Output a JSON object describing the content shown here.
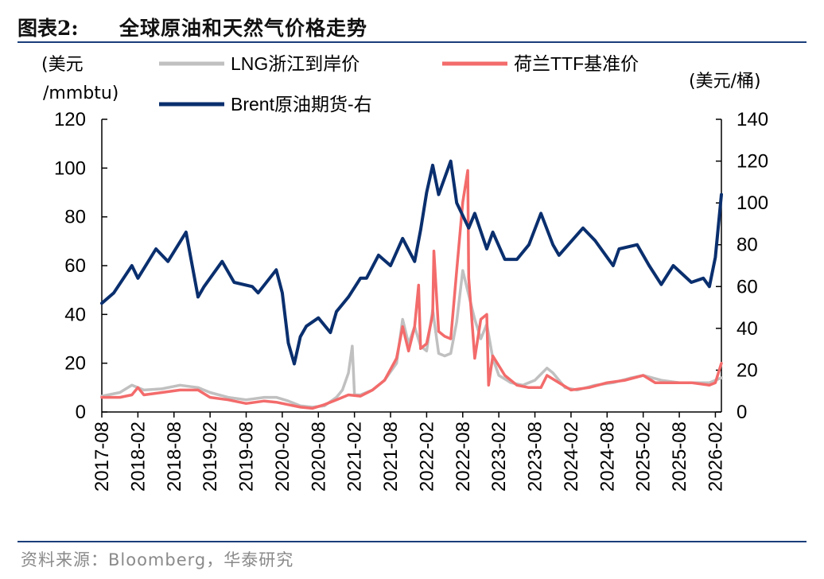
{
  "header": {
    "figure_label": "图表2:",
    "title": "全球原油和天然气价格走势"
  },
  "footer": {
    "source": "资料来源：Bloomberg，华泰研究"
  },
  "chart_data": {
    "type": "line",
    "title": "全球原油和天然气价格走势",
    "left_axis": {
      "unit_line1": "(美元",
      "unit_line2": "/mmbtu)",
      "ylim": [
        0,
        120
      ],
      "ticks": [
        0,
        20,
        40,
        60,
        80,
        100,
        120
      ]
    },
    "right_axis": {
      "unit": "(美元/桶)",
      "ylim": [
        0,
        140
      ],
      "ticks": [
        0,
        20,
        40,
        60,
        80,
        100,
        120,
        140
      ]
    },
    "x_range": [
      "2017-08",
      "2026-03"
    ],
    "x_ticks": [
      "2017-08",
      "2018-02",
      "2018-08",
      "2019-02",
      "2019-08",
      "2020-02",
      "2020-08",
      "2021-02",
      "2021-08",
      "2022-02",
      "2022-08",
      "2023-02",
      "2023-08",
      "2024-02",
      "2024-08",
      "2025-02",
      "2025-08",
      "2026-02"
    ],
    "series": [
      {
        "name": "LNG浙江到岸价",
        "axis": "left",
        "color": "#c0c0c0",
        "x": [
          "2017-08",
          "2017-11",
          "2018-01",
          "2018-03",
          "2018-06",
          "2018-09",
          "2018-12",
          "2019-02",
          "2019-05",
          "2019-08",
          "2019-11",
          "2020-01",
          "2020-03",
          "2020-05",
          "2020-07",
          "2020-09",
          "2020-11",
          "2020-12",
          "2021-01",
          "2021-01-20",
          "2021-02",
          "2021-03",
          "2021-05",
          "2021-07",
          "2021-09",
          "2021-10",
          "2021-11",
          "2021-12",
          "2022-01",
          "2022-02",
          "2022-03",
          "2022-04",
          "2022-05",
          "2022-06",
          "2022-07",
          "2022-08",
          "2022-09",
          "2022-10",
          "2022-11",
          "2022-12",
          "2023-01",
          "2023-02",
          "2023-04",
          "2023-06",
          "2023-08",
          "2023-10",
          "2023-11",
          "2024-01",
          "2024-03",
          "2024-06",
          "2024-09",
          "2024-12",
          "2025-02",
          "2025-05",
          "2025-08",
          "2025-11",
          "2026-01",
          "2026-02",
          "2026-03"
        ],
        "values": [
          6.5,
          8,
          11,
          9,
          9.5,
          11,
          10,
          8,
          6,
          5,
          6,
          6,
          4.5,
          2.5,
          2,
          2.5,
          6,
          9,
          16,
          27,
          7,
          7,
          9,
          13,
          20,
          38,
          28,
          35,
          27,
          25,
          42,
          24,
          23,
          24,
          37,
          58,
          48,
          38,
          30,
          36,
          22,
          15,
          12,
          11,
          13,
          18,
          16,
          10,
          9,
          11,
          12,
          14,
          15,
          13,
          12,
          12,
          12,
          13,
          14
        ]
      },
      {
        "name": "荷兰TTF基准价",
        "axis": "left",
        "color": "#f36b6b",
        "x": [
          "2017-08",
          "2017-11",
          "2018-01",
          "2018-02",
          "2018-03",
          "2018-06",
          "2018-09",
          "2018-12",
          "2019-02",
          "2019-05",
          "2019-08",
          "2019-11",
          "2020-01",
          "2020-03",
          "2020-05",
          "2020-07",
          "2020-09",
          "2020-11",
          "2021-01",
          "2021-03",
          "2021-05",
          "2021-07",
          "2021-09",
          "2021-10",
          "2021-11",
          "2021-12",
          "2021-12-21",
          "2022-01",
          "2022-02",
          "2022-03",
          "2022-03-07",
          "2022-04",
          "2022-05",
          "2022-06",
          "2022-07",
          "2022-08",
          "2022-08-26",
          "2022-09",
          "2022-10",
          "2022-11",
          "2022-12",
          "2022-12-10",
          "2023-01",
          "2023-03",
          "2023-05",
          "2023-07",
          "2023-09",
          "2023-10",
          "2023-12",
          "2024-02",
          "2024-05",
          "2024-08",
          "2024-11",
          "2025-02",
          "2025-04",
          "2025-07",
          "2025-10",
          "2026-01",
          "2026-02",
          "2026-03"
        ],
        "values": [
          6,
          6,
          7,
          10,
          7,
          8,
          9,
          9,
          6,
          5,
          3.5,
          4.5,
          4,
          3,
          2,
          1.5,
          3,
          5,
          7,
          6.5,
          9,
          13,
          22,
          35,
          25,
          35,
          52,
          26,
          28,
          40,
          66,
          33,
          31,
          30,
          58,
          86,
          99,
          55,
          22,
          38,
          40,
          11,
          23,
          15,
          11,
          10,
          10,
          15,
          12,
          9,
          10,
          12,
          13,
          15,
          12,
          12,
          12,
          11,
          12,
          20
        ]
      },
      {
        "name": "Brent原油期货-右",
        "axis": "right",
        "color": "#0a2f6e",
        "x": [
          "2017-08",
          "2017-10",
          "2018-01",
          "2018-02",
          "2018-05",
          "2018-07",
          "2018-10",
          "2018-12",
          "2019-01",
          "2019-04",
          "2019-06",
          "2019-09",
          "2019-10",
          "2020-01",
          "2020-02",
          "2020-03",
          "2020-04",
          "2020-05",
          "2020-06",
          "2020-08",
          "2020-10",
          "2020-11",
          "2021-01",
          "2021-03",
          "2021-04",
          "2021-06",
          "2021-08",
          "2021-10",
          "2021-12",
          "2022-01",
          "2022-02",
          "2022-03",
          "2022-04",
          "2022-05",
          "2022-06",
          "2022-07",
          "2022-09",
          "2022-10",
          "2022-12",
          "2023-01",
          "2023-03",
          "2023-05",
          "2023-07",
          "2023-09",
          "2023-11",
          "2023-12",
          "2024-04",
          "2024-06",
          "2024-09",
          "2024-10",
          "2025-01",
          "2025-03",
          "2025-05",
          "2025-07",
          "2025-10",
          "2025-12",
          "2026-01",
          "2026-02",
          "2026-03"
        ],
        "values": [
          52,
          57,
          70,
          64,
          78,
          72,
          86,
          55,
          60,
          72,
          62,
          60,
          57,
          68,
          57,
          33,
          23,
          36,
          41,
          45,
          38,
          48,
          55,
          64,
          64,
          75,
          70,
          83,
          72,
          87,
          105,
          118,
          104,
          112,
          120,
          100,
          88,
          95,
          78,
          86,
          73,
          73,
          80,
          95,
          80,
          75,
          88,
          82,
          70,
          78,
          80,
          70,
          61,
          70,
          62,
          64,
          60,
          74,
          104
        ]
      }
    ]
  }
}
